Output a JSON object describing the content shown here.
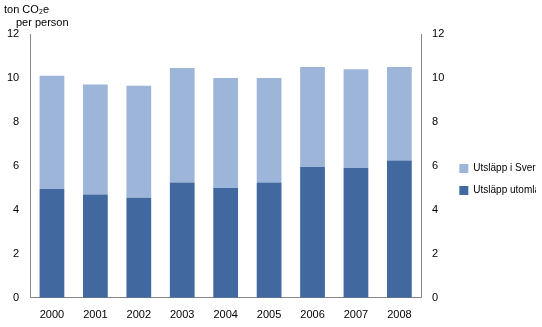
{
  "chart_data": {
    "type": "bar",
    "ylabel": "ton CO₂e per person",
    "categories": [
      "2000",
      "2001",
      "2002",
      "2003",
      "2004",
      "2005",
      "2006",
      "2007",
      "2008"
    ],
    "series": [
      {
        "name": "Utsläpp utomlands",
        "color": "#41689f",
        "values": [
          4.95,
          4.7,
          4.55,
          5.25,
          5.0,
          5.25,
          5.95,
          5.9,
          6.25
        ]
      },
      {
        "name": "Utsläpp i Sverige",
        "color": "#9db5d9",
        "values": [
          5.15,
          5.0,
          5.1,
          5.2,
          5.0,
          4.75,
          4.55,
          4.5,
          4.25
        ]
      }
    ],
    "stacked": true,
    "ylim": [
      0,
      12
    ],
    "yticks": [
      0,
      2,
      4,
      6,
      8,
      10,
      12
    ],
    "y2lim": [
      0,
      12
    ],
    "y2ticks": [
      0,
      2,
      4,
      6,
      8,
      10,
      12
    ],
    "grid": false,
    "legend": "right"
  }
}
